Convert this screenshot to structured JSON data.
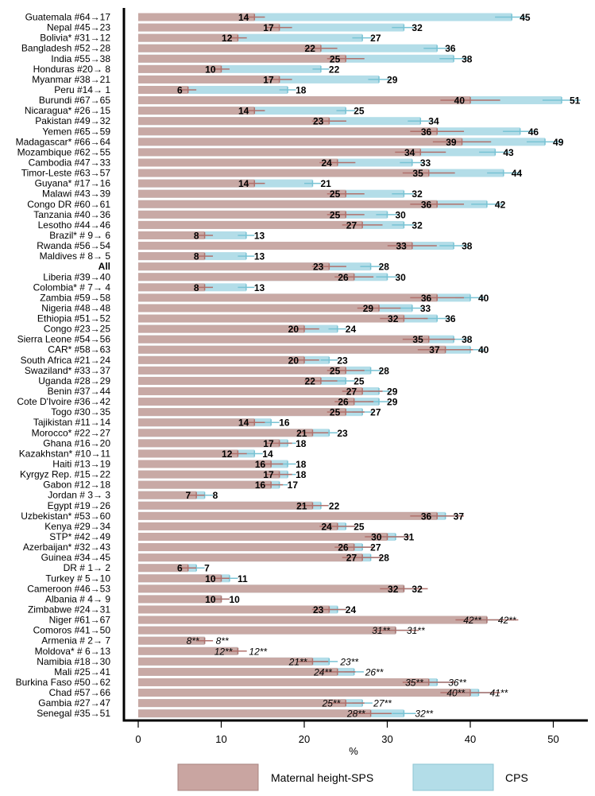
{
  "chart_data": {
    "type": "bar",
    "orientation": "horizontal",
    "xlabel": "%",
    "xlim": [
      0,
      55
    ],
    "xticks": [
      0,
      10,
      20,
      30,
      40,
      50
    ],
    "grid": false,
    "legend_position": "bottom",
    "series": [
      {
        "name": "Maternal height-SPS",
        "color": "#c9a5a1",
        "error_color": "#b0716c"
      },
      {
        "name": "CPS",
        "color": "#b3dde8",
        "error_color": "#79c3d4"
      }
    ],
    "rows": [
      {
        "label": "Guatemala #64→17",
        "sps": 14,
        "cps": 45,
        "sps_label": "14",
        "cps_label": "45"
      },
      {
        "label": "Nepal #45→23",
        "sps": 17,
        "cps": 32,
        "sps_label": "17",
        "cps_label": "32"
      },
      {
        "label": "Bolivia* #31→12",
        "sps": 12,
        "cps": 27,
        "sps_label": "12",
        "cps_label": "27"
      },
      {
        "label": "Bangladesh #52→28",
        "sps": 22,
        "cps": 36,
        "sps_label": "22",
        "cps_label": "36"
      },
      {
        "label": "India #55→38",
        "sps": 25,
        "cps": 38,
        "sps_label": "25",
        "cps_label": "38"
      },
      {
        "label": "Honduras #20→ 8",
        "sps": 10,
        "cps": 22,
        "sps_label": "10",
        "cps_label": "22"
      },
      {
        "label": "Myanmar #38→21",
        "sps": 17,
        "cps": 29,
        "sps_label": "17",
        "cps_label": "29"
      },
      {
        "label": "Peru #14→ 1",
        "sps": 6,
        "cps": 18,
        "sps_label": "6",
        "cps_label": "18"
      },
      {
        "label": "Burundi #67→65",
        "sps": 40,
        "cps": 51,
        "sps_label": "40",
        "cps_label": "51"
      },
      {
        "label": "Nicaragua* #26→15",
        "sps": 14,
        "cps": 25,
        "sps_label": "14",
        "cps_label": "25"
      },
      {
        "label": "Pakistan #49→32",
        "sps": 23,
        "cps": 34,
        "sps_label": "23",
        "cps_label": "34"
      },
      {
        "label": "Yemen #65→59",
        "sps": 36,
        "cps": 46,
        "sps_label": "36",
        "cps_label": "46"
      },
      {
        "label": "Madagascar* #66→64",
        "sps": 39,
        "cps": 49,
        "sps_label": "39",
        "cps_label": "49"
      },
      {
        "label": "Mozambique #62→55",
        "sps": 34,
        "cps": 43,
        "sps_label": "34",
        "cps_label": "43"
      },
      {
        "label": "Cambodia #47→33",
        "sps": 24,
        "cps": 33,
        "sps_label": "24",
        "cps_label": "33"
      },
      {
        "label": "Timor-Leste #63→57",
        "sps": 35,
        "cps": 44,
        "sps_label": "35",
        "cps_label": "44"
      },
      {
        "label": "Guyana* #17→16",
        "sps": 14,
        "cps": 21,
        "sps_label": "14",
        "cps_label": "21"
      },
      {
        "label": "Malawi #43→39",
        "sps": 25,
        "cps": 32,
        "sps_label": "25",
        "cps_label": "32"
      },
      {
        "label": "Congo DR #60→61",
        "sps": 36,
        "cps": 42,
        "sps_label": "36",
        "cps_label": "42"
      },
      {
        "label": "Tanzania #40→36",
        "sps": 25,
        "cps": 30,
        "sps_label": "25",
        "cps_label": "30"
      },
      {
        "label": "Lesotho #44→46",
        "sps": 27,
        "cps": 32,
        "sps_label": "27",
        "cps_label": "32"
      },
      {
        "label": "Brazil* # 9→ 6",
        "sps": 8,
        "cps": 13,
        "sps_label": "8",
        "cps_label": "13"
      },
      {
        "label": "Rwanda #56→54",
        "sps": 33,
        "cps": 38,
        "sps_label": "33",
        "cps_label": "38"
      },
      {
        "label": "Maldives # 8→ 5",
        "sps": 8,
        "cps": 13,
        "sps_label": "8",
        "cps_label": "13"
      },
      {
        "label": "All",
        "bold": true,
        "sps": 23,
        "cps": 28,
        "sps_label": "23",
        "cps_label": "28"
      },
      {
        "label": "Liberia #39→40",
        "sps": 26,
        "cps": 30,
        "sps_label": "26",
        "cps_label": "30"
      },
      {
        "label": "Colombia* # 7→ 4",
        "sps": 8,
        "cps": 13,
        "sps_label": "8",
        "cps_label": "13"
      },
      {
        "label": "Zambia #59→58",
        "sps": 36,
        "cps": 40,
        "sps_label": "36",
        "cps_label": "40"
      },
      {
        "label": "Nigeria #48→48",
        "sps": 29,
        "cps": 33,
        "sps_label": "29",
        "cps_label": "33"
      },
      {
        "label": "Ethiopia #51→52",
        "sps": 32,
        "cps": 36,
        "sps_label": "32",
        "cps_label": "36"
      },
      {
        "label": "Congo #23→25",
        "sps": 20,
        "cps": 24,
        "sps_label": "20",
        "cps_label": "24"
      },
      {
        "label": "Sierra Leone #54→56",
        "sps": 35,
        "cps": 38,
        "sps_label": "35",
        "cps_label": "38"
      },
      {
        "label": "CAR* #58→63",
        "sps": 37,
        "cps": 40,
        "sps_label": "37",
        "cps_label": "40"
      },
      {
        "label": "South Africa #21→24",
        "sps": 20,
        "cps": 23,
        "sps_label": "20",
        "cps_label": "23"
      },
      {
        "label": "Swaziland* #33→37",
        "sps": 25,
        "cps": 28,
        "sps_label": "25",
        "cps_label": "28"
      },
      {
        "label": "Uganda #28→29",
        "sps": 22,
        "cps": 25,
        "sps_label": "22",
        "cps_label": "25"
      },
      {
        "label": "Benin #37→44",
        "sps": 27,
        "cps": 29,
        "sps_label": "27",
        "cps_label": "29"
      },
      {
        "label": "Cote D'Ivoire #36→42",
        "sps": 26,
        "cps": 29,
        "sps_label": "26",
        "cps_label": "29"
      },
      {
        "label": "Togo #30→35",
        "sps": 25,
        "cps": 27,
        "sps_label": "25",
        "cps_label": "27"
      },
      {
        "label": "Tajikistan #11→14",
        "sps": 14,
        "cps": 16,
        "sps_label": "14",
        "cps_label": "16"
      },
      {
        "label": "Morocco* #22→27",
        "sps": 21,
        "cps": 23,
        "sps_label": "21",
        "cps_label": "23"
      },
      {
        "label": "Ghana #16→20",
        "sps": 17,
        "cps": 18,
        "sps_label": "17",
        "cps_label": "18"
      },
      {
        "label": "Kazakhstan* #10→11",
        "sps": 12,
        "cps": 14,
        "sps_label": "12",
        "cps_label": "14"
      },
      {
        "label": "Haiti #13→19",
        "sps": 16,
        "cps": 18,
        "sps_label": "16",
        "cps_label": "18"
      },
      {
        "label": "Kyrgyz Rep. #15→22",
        "sps": 17,
        "cps": 18,
        "sps_label": "17",
        "cps_label": "18"
      },
      {
        "label": "Gabon #12→18",
        "sps": 16,
        "cps": 17,
        "sps_label": "16",
        "cps_label": "17"
      },
      {
        "label": "Jordan # 3→ 3",
        "sps": 7,
        "cps": 8,
        "sps_label": "7",
        "cps_label": "8"
      },
      {
        "label": "Egypt #19→26",
        "sps": 21,
        "cps": 22,
        "sps_label": "21",
        "cps_label": "22"
      },
      {
        "label": "Uzbekistan* #53→60",
        "sps": 36,
        "cps": 37,
        "sps_label": "36",
        "cps_label": "37"
      },
      {
        "label": "Kenya #29→34",
        "sps": 24,
        "cps": 25,
        "sps_label": "24",
        "cps_label": "25"
      },
      {
        "label": "STP* #42→49",
        "sps": 30,
        "cps": 31,
        "sps_label": "30",
        "cps_label": "31"
      },
      {
        "label": "Azerbaijan* #32→43",
        "sps": 26,
        "cps": 27,
        "sps_label": "26",
        "cps_label": "27"
      },
      {
        "label": "Guinea #34→45",
        "sps": 27,
        "cps": 28,
        "sps_label": "27",
        "cps_label": "28"
      },
      {
        "label": "DR # 1→ 2",
        "sps": 6,
        "cps": 7,
        "sps_label": "6",
        "cps_label": "7"
      },
      {
        "label": "Turkey # 5→10",
        "sps": 10,
        "cps": 11,
        "sps_label": "10",
        "cps_label": "11"
      },
      {
        "label": "Cameroon #46→53",
        "sps": 32,
        "cps": 32,
        "sps_label": "32",
        "cps_label": "32"
      },
      {
        "label": "Albania # 4→ 9",
        "sps": 10,
        "cps": 10,
        "sps_label": "10",
        "cps_label": "10"
      },
      {
        "label": "Zimbabwe #24→31",
        "sps": 23,
        "cps": 24,
        "sps_label": "23",
        "cps_label": "24"
      },
      {
        "label": "Niger #61→67",
        "sps": 42,
        "cps": 42,
        "sps_label": "42**",
        "cps_label": "42**",
        "italic": true
      },
      {
        "label": "Comoros #41→50",
        "sps": 31,
        "cps": 31,
        "sps_label": "31**",
        "cps_label": "31**",
        "italic": true
      },
      {
        "label": "Armenia # 2→ 7",
        "sps": 8,
        "cps": 8,
        "sps_label": "8**",
        "cps_label": "8**",
        "italic": true
      },
      {
        "label": "Moldova* # 6→13",
        "sps": 12,
        "cps": 12,
        "sps_label": "12**",
        "cps_label": "12**",
        "italic": true
      },
      {
        "label": "Namibia #18→30",
        "sps": 21,
        "cps": 23,
        "sps_label": "21**",
        "cps_label": "23**",
        "italic": true
      },
      {
        "label": "Mali #25→41",
        "sps": 24,
        "cps": 26,
        "sps_label": "24**",
        "cps_label": "26**",
        "italic": true
      },
      {
        "label": "Burkina Faso #50→62",
        "sps": 35,
        "cps": 36,
        "sps_label": "35**",
        "cps_label": "36**",
        "italic": true
      },
      {
        "label": "Chad #57→66",
        "sps": 40,
        "cps": 41,
        "sps_label": "40**",
        "cps_label": "41**",
        "italic": true
      },
      {
        "label": "Gambia #27→47",
        "sps": 25,
        "cps": 27,
        "sps_label": "25**",
        "cps_label": "27**",
        "italic": true
      },
      {
        "label": "Senegal #35→51",
        "sps": 28,
        "cps": 32,
        "sps_label": "28**",
        "cps_label": "32**",
        "italic": true
      }
    ]
  }
}
